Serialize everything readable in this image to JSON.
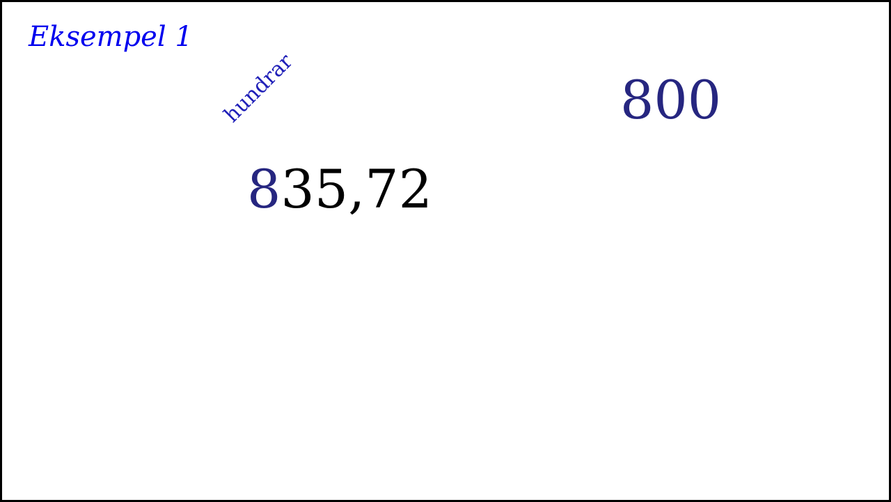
{
  "slide": {
    "title": "Eksempel 1",
    "place_label": "hundrar",
    "number": {
      "highlighted_digit": "8",
      "rest": "35,72"
    },
    "result": "800"
  },
  "colors": {
    "title": "#0000ee",
    "place_label": "#1f1fb8",
    "highlight": "#262680",
    "number": "#000000",
    "border": "#000000"
  }
}
